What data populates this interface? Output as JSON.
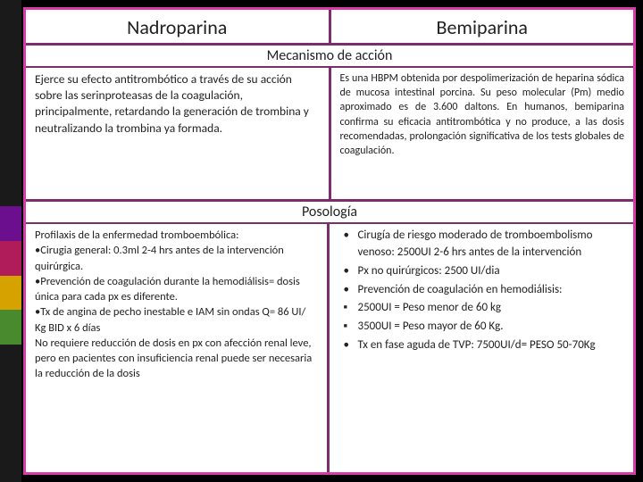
{
  "sidebar_colors": [
    "#1a1a1a",
    "#1a1a1a",
    "#1a1a1a",
    "#1a1a1a",
    "#1a1a1a",
    "#1a1a1a",
    "#6b0f8f",
    "#b01c59",
    "#d6a200",
    "#4a8a2f",
    "#1a1a1a",
    "#1a1a1a",
    "#1a1a1a",
    "#1a1a1a"
  ],
  "border_color": "#d63ca8",
  "inner_border_color": "#7c2d6e",
  "headers": {
    "left": "Nadroparina",
    "right": "Bemiparina"
  },
  "sections": {
    "mechanism_title": "Mecanismo de acción",
    "posology_title": "Posología"
  },
  "mechanism": {
    "left": "Ejerce su efecto antitrombótico a través de su acción sobre las serinproteasas de la coagulación, principalmente, retardando la generación de trombina y neutralizando la trombina ya formada.",
    "right": "Es una HBPM obtenida por despolimerización de heparina sódica de mucosa intestinal porcina. Su peso molecular (Pm) medio aproximado es de 3.600 daltons. En humanos, bemiparina confirma su eficacia antitrombótica y no produce, a las dosis recomendadas, prolongación significativa de los tests globales de coagulación."
  },
  "posology": {
    "left": {
      "line1": "Profilaxis de la enfermedad tromboembólica:",
      "item1": "Cirugia general: 0.3ml  2-4 hrs antes de la intervención quirúrgica.",
      "item2": "Prevención de coagulación durante la hemodiálisis= dosis única para cada px es diferente.",
      "item3": "Tx de angina de pecho inestable e IAM sin ondas Q=  86 UI/ Kg BID x 6 días",
      "line2": "No requiere reducción de dosis en px con afección renal leve, pero en pacientes con insuficiencia renal puede ser necesaria la reducción de la dosis"
    },
    "right": [
      {
        "bullet": "•",
        "text": "Cirugía de riesgo moderado de tromboembolismo venoso: 2500UI 2-6 hrs antes de la intervención"
      },
      {
        "bullet": "•",
        "text": "Px no quirúrgicos: 2500 UI/dia"
      },
      {
        "bullet": "•",
        "text": "Prevención de coagulación en hemodiálisis:"
      },
      {
        "bullet": "▪",
        "text": "2500UI = Peso menor de 60 kg"
      },
      {
        "bullet": "▪",
        "text": "3500UI = Peso mayor de 60 Kg."
      },
      {
        "bullet": "•",
        "text": "Tx en fase aguda de TVP: 7500UI/d= PESO 50-70Kg"
      }
    ]
  }
}
